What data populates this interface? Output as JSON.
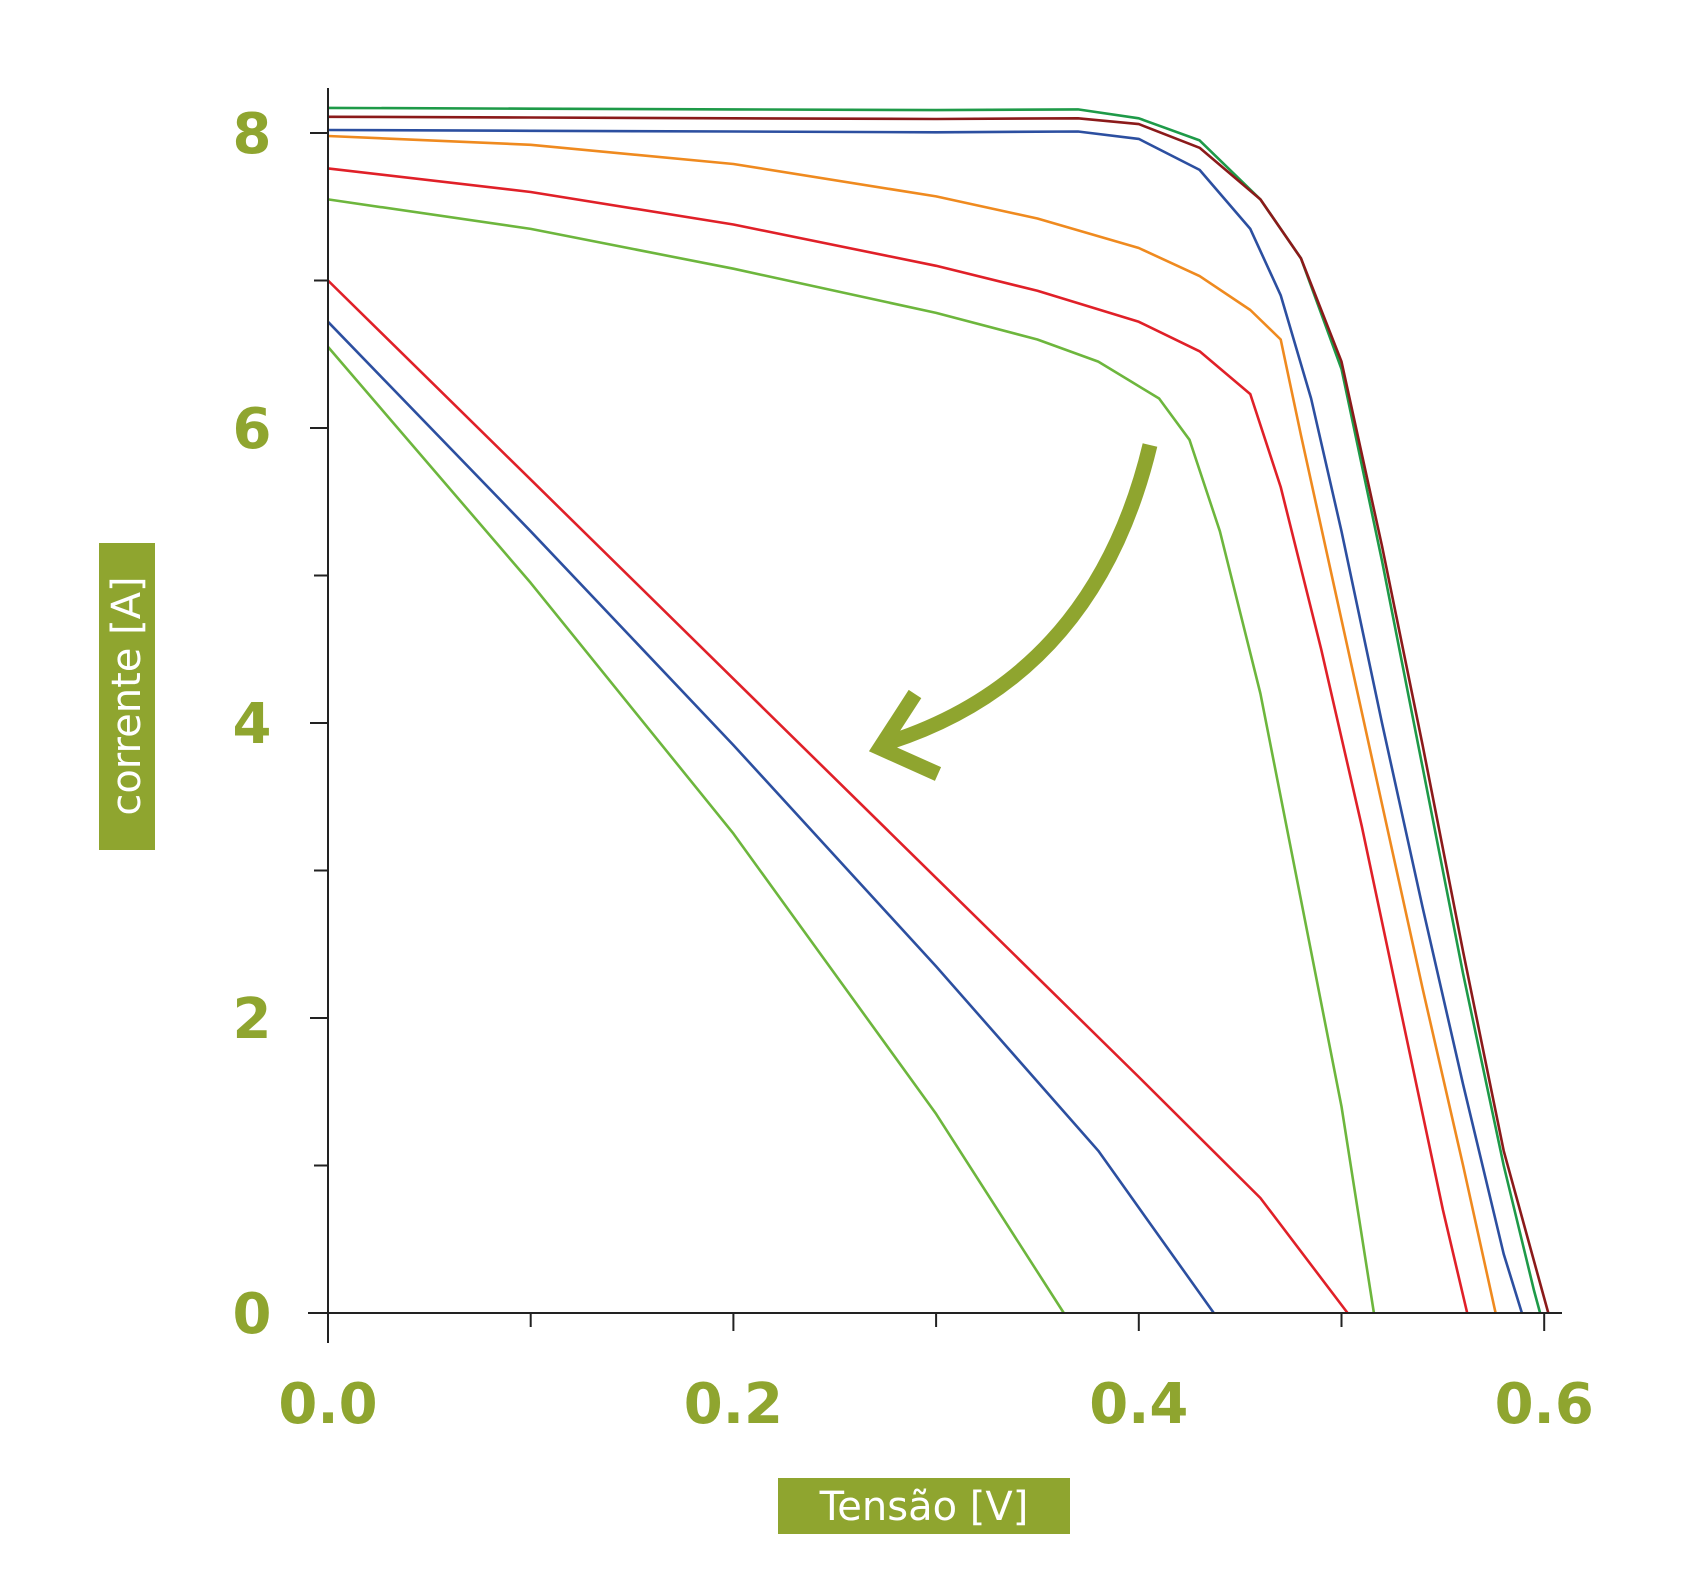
{
  "chart_data": {
    "type": "line",
    "title": "",
    "xlabel": "Tensão [V]",
    "ylabel": "corrente [A]",
    "xlim": [
      0,
      0.61
    ],
    "ylim": [
      0,
      8.5
    ],
    "x_ticks": [
      {
        "value": 0.0,
        "label": "0.0"
      },
      {
        "value": 0.2,
        "label": "0.2"
      },
      {
        "value": 0.4,
        "label": "0.4"
      },
      {
        "value": 0.6,
        "label": "0.6"
      }
    ],
    "x_minor_ticks": [
      0.1,
      0.3,
      0.5
    ],
    "y_ticks": [
      {
        "value": 0,
        "label": "0"
      },
      {
        "value": 2,
        "label": "2"
      },
      {
        "value": 4,
        "label": "4"
      },
      {
        "value": 6,
        "label": "6"
      },
      {
        "value": 8,
        "label": "8"
      }
    ],
    "y_minor_ticks": [
      1,
      3,
      5,
      7
    ],
    "grid": false,
    "legend": "none",
    "colors": {
      "accent": "#8fa52f",
      "axis": "#222222"
    },
    "series": [
      {
        "color": "#1e9a48",
        "points": [
          [
            0,
            8.17
          ],
          [
            0.1,
            8.165
          ],
          [
            0.2,
            8.16
          ],
          [
            0.3,
            8.155
          ],
          [
            0.37,
            8.16
          ],
          [
            0.4,
            8.1
          ],
          [
            0.43,
            7.95
          ],
          [
            0.46,
            7.55
          ],
          [
            0.48,
            7.15
          ],
          [
            0.5,
            6.4
          ],
          [
            0.52,
            5.1
          ],
          [
            0.54,
            3.7
          ],
          [
            0.56,
            2.3
          ],
          [
            0.58,
            1.0
          ],
          [
            0.595,
            0.15
          ],
          [
            0.598,
            0.0
          ]
        ]
      },
      {
        "color": "#8b1a1a",
        "points": [
          [
            0,
            8.11
          ],
          [
            0.1,
            8.105
          ],
          [
            0.2,
            8.1
          ],
          [
            0.3,
            8.095
          ],
          [
            0.37,
            8.1
          ],
          [
            0.4,
            8.06
          ],
          [
            0.43,
            7.9
          ],
          [
            0.46,
            7.55
          ],
          [
            0.48,
            7.15
          ],
          [
            0.5,
            6.45
          ],
          [
            0.52,
            5.2
          ],
          [
            0.54,
            3.85
          ],
          [
            0.56,
            2.45
          ],
          [
            0.58,
            1.1
          ],
          [
            0.599,
            0.15
          ],
          [
            0.602,
            0.0
          ]
        ]
      },
      {
        "color": "#2c4fa0",
        "points": [
          [
            0,
            8.02
          ],
          [
            0.1,
            8.015
          ],
          [
            0.2,
            8.01
          ],
          [
            0.3,
            8.005
          ],
          [
            0.37,
            8.01
          ],
          [
            0.4,
            7.96
          ],
          [
            0.43,
            7.75
          ],
          [
            0.455,
            7.35
          ],
          [
            0.47,
            6.9
          ],
          [
            0.485,
            6.2
          ],
          [
            0.5,
            5.3
          ],
          [
            0.52,
            4.0
          ],
          [
            0.54,
            2.75
          ],
          [
            0.56,
            1.55
          ],
          [
            0.58,
            0.4
          ],
          [
            0.589,
            0.0
          ]
        ]
      },
      {
        "color": "#ef8a1f",
        "points": [
          [
            0,
            7.98
          ],
          [
            0.1,
            7.92
          ],
          [
            0.2,
            7.79
          ],
          [
            0.3,
            7.57
          ],
          [
            0.35,
            7.42
          ],
          [
            0.4,
            7.22
          ],
          [
            0.43,
            7.03
          ],
          [
            0.455,
            6.8
          ],
          [
            0.47,
            6.6
          ],
          [
            0.48,
            5.95
          ],
          [
            0.5,
            4.7
          ],
          [
            0.52,
            3.45
          ],
          [
            0.54,
            2.2
          ],
          [
            0.56,
            1.0
          ],
          [
            0.576,
            0.0
          ]
        ]
      },
      {
        "color": "#e02028",
        "points": [
          [
            0,
            7.76
          ],
          [
            0.1,
            7.6
          ],
          [
            0.2,
            7.38
          ],
          [
            0.3,
            7.1
          ],
          [
            0.35,
            6.93
          ],
          [
            0.4,
            6.72
          ],
          [
            0.43,
            6.52
          ],
          [
            0.455,
            6.23
          ],
          [
            0.47,
            5.6
          ],
          [
            0.49,
            4.5
          ],
          [
            0.51,
            3.3
          ],
          [
            0.53,
            2.0
          ],
          [
            0.55,
            0.7
          ],
          [
            0.562,
            0.0
          ]
        ]
      },
      {
        "color": "#6db63d",
        "points": [
          [
            0,
            7.55
          ],
          [
            0.1,
            7.35
          ],
          [
            0.2,
            7.08
          ],
          [
            0.3,
            6.78
          ],
          [
            0.35,
            6.6
          ],
          [
            0.38,
            6.45
          ],
          [
            0.41,
            6.2
          ],
          [
            0.425,
            5.92
          ],
          [
            0.44,
            5.3
          ],
          [
            0.46,
            4.2
          ],
          [
            0.48,
            2.8
          ],
          [
            0.5,
            1.4
          ],
          [
            0.516,
            0.0
          ]
        ]
      },
      {
        "color": "#e02028",
        "points": [
          [
            0,
            7.0
          ],
          [
            0.1,
            5.65
          ],
          [
            0.2,
            4.3
          ],
          [
            0.3,
            2.95
          ],
          [
            0.4,
            1.6
          ],
          [
            0.46,
            0.78
          ],
          [
            0.503,
            0.0
          ]
        ]
      },
      {
        "color": "#2c4fa0",
        "points": [
          [
            0,
            6.72
          ],
          [
            0.1,
            5.3
          ],
          [
            0.2,
            3.85
          ],
          [
            0.3,
            2.35
          ],
          [
            0.38,
            1.1
          ],
          [
            0.437,
            0.0
          ]
        ]
      },
      {
        "color": "#6db63d",
        "points": [
          [
            0,
            6.55
          ],
          [
            0.1,
            4.95
          ],
          [
            0.2,
            3.25
          ],
          [
            0.3,
            1.35
          ],
          [
            0.363,
            0.0
          ]
        ]
      }
    ]
  }
}
